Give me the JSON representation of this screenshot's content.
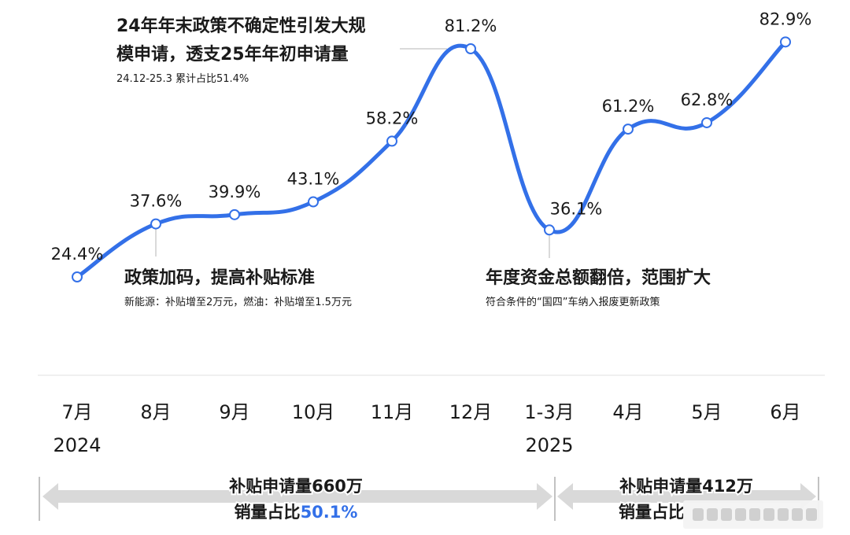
{
  "chart_data": {
    "type": "line",
    "categories": [
      {
        "label": "7月",
        "year": "2024"
      },
      {
        "label": "8月",
        "year": ""
      },
      {
        "label": "9月",
        "year": ""
      },
      {
        "label": "10月",
        "year": ""
      },
      {
        "label": "11月",
        "year": ""
      },
      {
        "label": "12月",
        "year": ""
      },
      {
        "label": "1-3月",
        "year": "2025"
      },
      {
        "label": "4月",
        "year": ""
      },
      {
        "label": "5月",
        "year": ""
      },
      {
        "label": "6月",
        "year": ""
      }
    ],
    "series": [
      {
        "values": [
          24.4,
          37.6,
          39.9,
          43.1,
          58.2,
          81.2,
          36.1,
          61.2,
          62.8,
          82.9
        ],
        "value_labels": [
          "24.4%",
          "37.6%",
          "39.9%",
          "43.1%",
          "58.2%",
          "81.2%",
          "36.1%",
          "61.2%",
          "62.8%",
          "82.9%"
        ],
        "color": "#3370e8"
      }
    ],
    "ylim": [
      20,
      90
    ],
    "grid": false,
    "annotations": [
      {
        "id": "a1",
        "title_line1": "24年年末政策不确定性引发大规",
        "title_line2": "模申请，透支25年年初申请量",
        "subtitle": "24.12-25.3 累计占比51.4%"
      },
      {
        "id": "a2",
        "title": "政策加码，提高补贴标准",
        "subtitle": "新能源：补贴增至2万元，燃油：补贴增至1.5万元"
      },
      {
        "id": "a3",
        "title": "年度资金总额翻倍，范围扩大",
        "subtitle": "符合条件的“国四”车纳入报废更新政策"
      }
    ],
    "periods": [
      {
        "line1": "补贴申请量660万",
        "line2_prefix": "销量占比",
        "line2_highlight": "50.1%",
        "highlight_color": "#3370e8"
      },
      {
        "line1": "补贴申请量412万",
        "line2_prefix": "销量占比",
        "line2_highlight": ""
      }
    ]
  }
}
